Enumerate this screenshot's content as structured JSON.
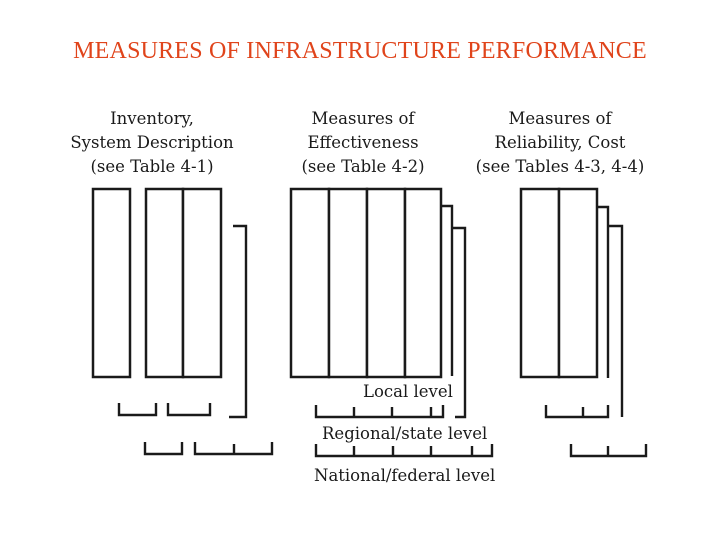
{
  "title": "MEASURES OF INFRASTRUCTURE PERFORMANCE",
  "colors": {
    "title": "#e0441b",
    "lines": "#1a1a1a",
    "background": "#ffffff"
  },
  "groups": [
    {
      "id": "inventory",
      "label_lines": [
        "Inventory,",
        "System Description",
        "(see Table 4-1)"
      ]
    },
    {
      "id": "effectiveness",
      "label_lines": [
        "Measures of",
        "Effectiveness",
        "(see Table 4-2)"
      ]
    },
    {
      "id": "reliability",
      "label_lines": [
        "Measures of",
        "Reliability, Cost",
        "(see Tables 4-3, 4-4)"
      ]
    }
  ],
  "levels": {
    "local": "Local level",
    "regional": "Regional/state level",
    "national": "National/federal level"
  }
}
